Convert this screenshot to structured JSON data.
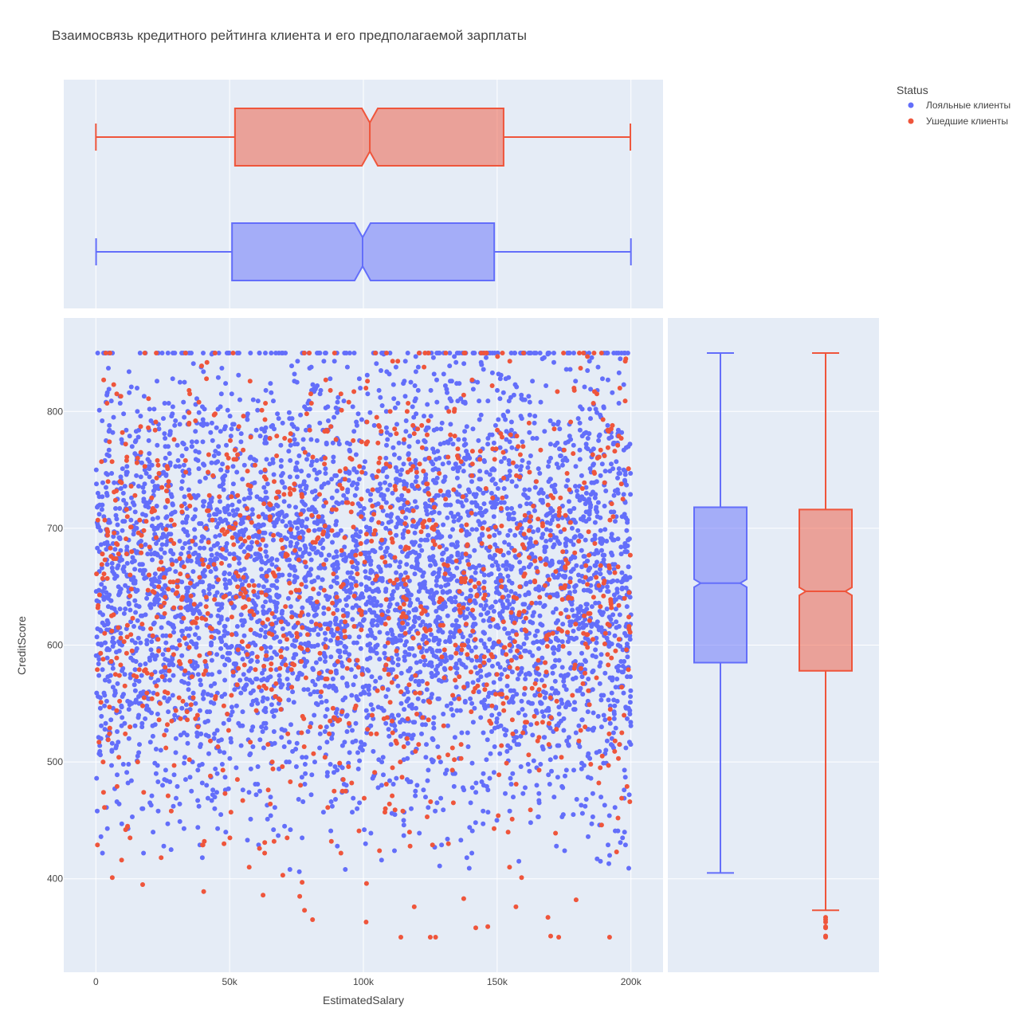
{
  "colors": {
    "loyal": "#636efa",
    "churned": "#ef553b",
    "plot_bg": "#e5ecf6",
    "grid": "#ffffff"
  },
  "chart_data": {
    "type": "scatter",
    "title": "Взаимосвязь кредитного рейтинга клиента и его предполагаемой зарплаты",
    "xlabel": "EstimatedSalary",
    "ylabel": "CreditScore",
    "xlim": [
      -12000,
      212000
    ],
    "ylim": [
      320,
      880
    ],
    "x_ticks": [
      {
        "value": 0,
        "label": "0"
      },
      {
        "value": 50000,
        "label": "50k"
      },
      {
        "value": 100000,
        "label": "100k"
      },
      {
        "value": 150000,
        "label": "150k"
      },
      {
        "value": 200000,
        "label": "200k"
      }
    ],
    "y_ticks": [
      {
        "value": 400,
        "label": "400"
      },
      {
        "value": 500,
        "label": "500"
      },
      {
        "value": 600,
        "label": "600"
      },
      {
        "value": 700,
        "label": "700"
      },
      {
        "value": 800,
        "label": "800"
      }
    ],
    "legend": {
      "title": "Status",
      "position": "top-right",
      "entries": [
        "Лояльные клиенты",
        "Ушедшие клиенты"
      ]
    },
    "grid": true,
    "series": [
      {
        "name": "Лояльные клиенты",
        "color": "#636efa",
        "n_points": 7963,
        "x_range": [
          90,
          199990
        ],
        "y_range": [
          405,
          850
        ],
        "box_x": {
          "min": 90,
          "q1": 50900,
          "median": 99700,
          "q3": 148900,
          "max": 199990
        },
        "box_y": {
          "min": 405,
          "q1": 585,
          "median": 653,
          "q3": 718,
          "max": 850,
          "outliers": []
        }
      },
      {
        "name": "Ушедшие клиенты",
        "color": "#ef553b",
        "n_points": 2037,
        "x_range": [
          12,
          199800
        ],
        "y_range": [
          350,
          850
        ],
        "box_x": {
          "min": 12,
          "q1": 52000,
          "median": 102400,
          "q3": 152400,
          "max": 199800
        },
        "box_y": {
          "min": 373,
          "q1": 578,
          "median": 646,
          "q3": 716,
          "max": 850,
          "outliers": [
            350,
            351,
            358,
            359,
            363,
            365,
            367
          ]
        },
        "low_points": [
          [
            17500,
            395
          ],
          [
            62500,
            386
          ],
          [
            78000,
            373
          ],
          [
            81000,
            365
          ],
          [
            101000,
            363
          ],
          [
            114000,
            350
          ],
          [
            119000,
            376
          ],
          [
            125000,
            350
          ],
          [
            127000,
            350
          ],
          [
            137500,
            383
          ],
          [
            142000,
            358
          ],
          [
            146500,
            359
          ],
          [
            157000,
            376
          ],
          [
            169000,
            367
          ],
          [
            170000,
            351
          ],
          [
            173000,
            350
          ],
          [
            179500,
            382
          ],
          [
            192000,
            350
          ]
        ]
      }
    ]
  }
}
